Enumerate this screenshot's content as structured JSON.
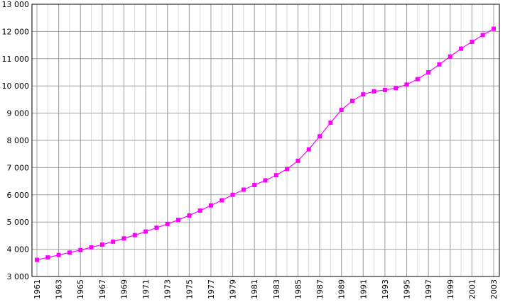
{
  "chart_data": {
    "type": "line",
    "x": [
      1961,
      1962,
      1963,
      1964,
      1965,
      1966,
      1967,
      1968,
      1969,
      1970,
      1971,
      1972,
      1973,
      1974,
      1975,
      1976,
      1977,
      1978,
      1979,
      1980,
      1981,
      1982,
      1983,
      1984,
      1985,
      1986,
      1987,
      1988,
      1989,
      1990,
      1991,
      1992,
      1993,
      1994,
      1995,
      1996,
      1997,
      1998,
      1999,
      2000,
      2001,
      2002,
      2003
    ],
    "series": [
      {
        "color": "#ff00ff",
        "values": [
          3610,
          3700,
          3790,
          3880,
          3970,
          4070,
          4170,
          4280,
          4400,
          4520,
          4650,
          4790,
          4930,
          5080,
          5240,
          5420,
          5610,
          5800,
          6000,
          6190,
          6360,
          6530,
          6720,
          6950,
          7250,
          7670,
          8150,
          8650,
          9120,
          9450,
          9690,
          9800,
          9850,
          9920,
          10050,
          10250,
          10500,
          10790,
          11080,
          11370,
          11620,
          11870,
          12100
        ]
      }
    ],
    "xlim": [
      1961,
      2003
    ],
    "xticks": [
      1961,
      1963,
      1965,
      1967,
      1969,
      1971,
      1973,
      1975,
      1977,
      1979,
      1981,
      1983,
      1985,
      1987,
      1989,
      1991,
      1993,
      1995,
      1997,
      1999,
      2001,
      2003
    ],
    "ylim": [
      3000,
      13000
    ],
    "yticks": [
      {
        "value": 3000,
        "label": "3 000"
      },
      {
        "value": 4000,
        "label": "4 000"
      },
      {
        "value": 5000,
        "label": "5 000"
      },
      {
        "value": 6000,
        "label": "6 000"
      },
      {
        "value": 7000,
        "label": "7 000"
      },
      {
        "value": 8000,
        "label": "8 000"
      },
      {
        "value": 9000,
        "label": "9 000"
      },
      {
        "value": 10000,
        "label": "10 000"
      },
      {
        "value": 11000,
        "label": "11 000"
      },
      {
        "value": 12000,
        "label": "12 000"
      },
      {
        "value": 13000,
        "label": "13 000"
      }
    ],
    "grid": true
  }
}
